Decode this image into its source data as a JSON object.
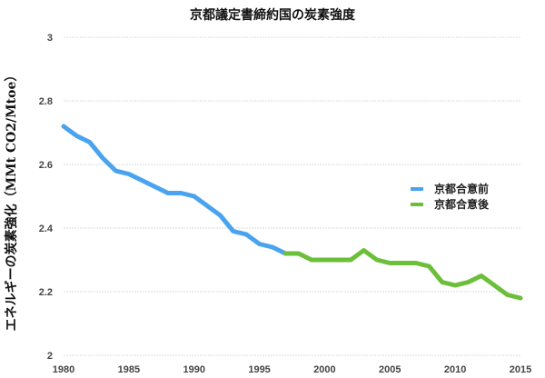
{
  "chart_data": {
    "type": "line",
    "title": "京都議定書締約国の炭素強度",
    "xlabel": "",
    "ylabel": "エネルギーの炭素強化（MMt CO2/Mtoe）",
    "xlim": [
      1980,
      2015
    ],
    "ylim": [
      2,
      3
    ],
    "xticks": [
      "1980",
      "1985",
      "1990",
      "1995",
      "2000",
      "2005",
      "2010",
      "2015"
    ],
    "yticks": [
      "2",
      "2.2",
      "2.4",
      "2.6",
      "2.8",
      "3"
    ],
    "grid": true,
    "legend_position": "right",
    "series": [
      {
        "name": "京都合意前",
        "color": "#4aa3ee",
        "x": [
          1980,
          1981,
          1982,
          1983,
          1984,
          1985,
          1986,
          1987,
          1988,
          1989,
          1990,
          1991,
          1992,
          1993,
          1994,
          1995,
          1996,
          1997
        ],
        "y": [
          2.72,
          2.69,
          2.67,
          2.62,
          2.58,
          2.57,
          2.55,
          2.53,
          2.51,
          2.51,
          2.5,
          2.47,
          2.44,
          2.39,
          2.38,
          2.35,
          2.34,
          2.32
        ]
      },
      {
        "name": "京都合意後",
        "color": "#6cbf3a",
        "x": [
          1997,
          1998,
          1999,
          2000,
          2001,
          2002,
          2003,
          2004,
          2005,
          2006,
          2007,
          2008,
          2009,
          2010,
          2011,
          2012,
          2013,
          2014,
          2015
        ],
        "y": [
          2.32,
          2.32,
          2.3,
          2.3,
          2.3,
          2.3,
          2.33,
          2.3,
          2.29,
          2.29,
          2.29,
          2.28,
          2.23,
          2.22,
          2.23,
          2.25,
          2.22,
          2.19,
          2.18
        ]
      }
    ]
  }
}
